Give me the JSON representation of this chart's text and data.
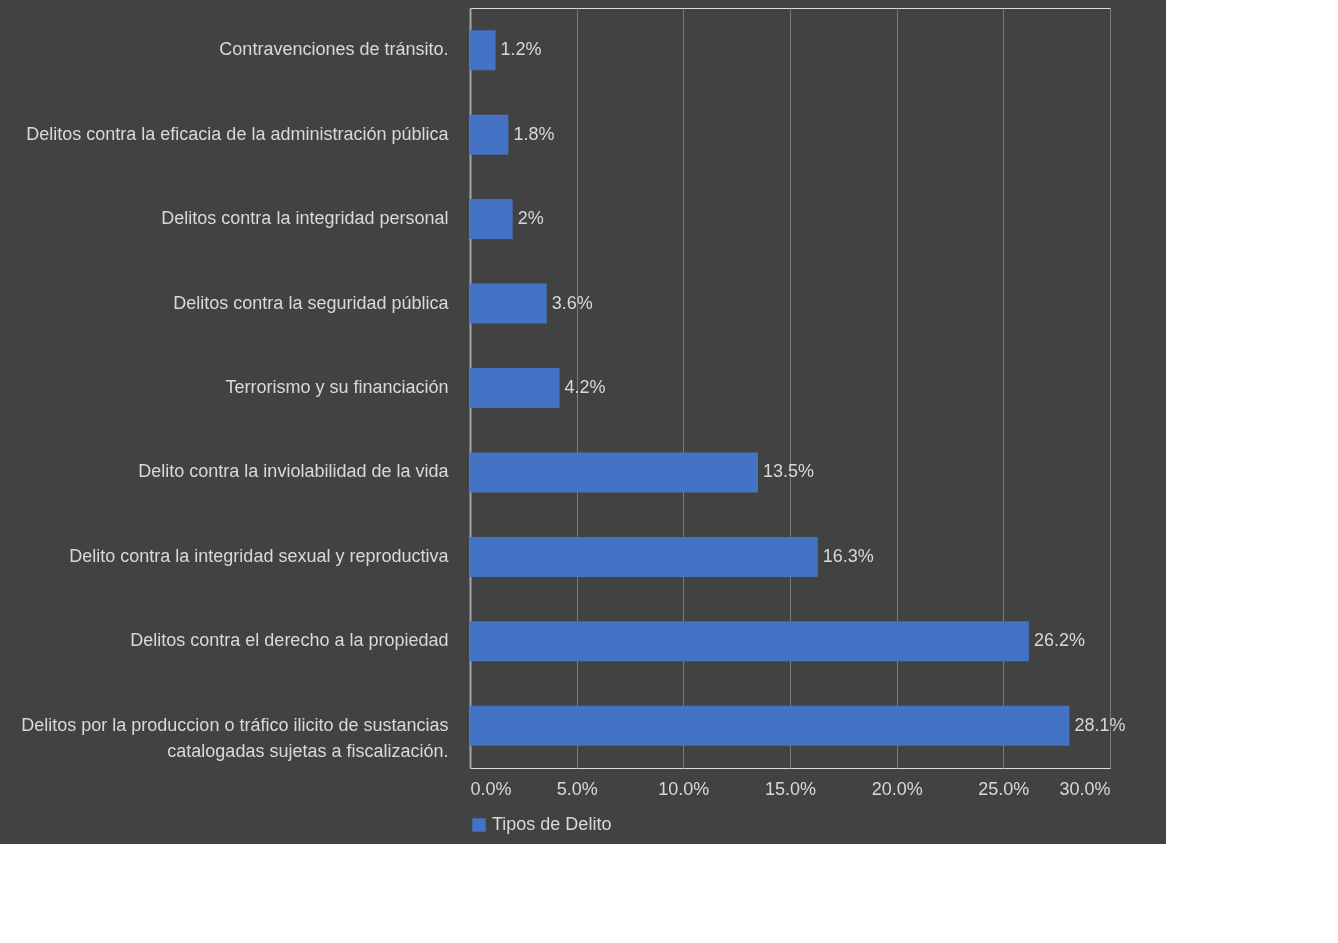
{
  "chart_data": {
    "type": "bar",
    "orientation": "horizontal",
    "categories": [
      "Contravenciones de tránsito.",
      "Delitos contra la eficacia de la administración pública",
      "Delitos contra la integridad personal",
      "Delitos contra la seguridad pública",
      "Terrorismo y su financiación",
      "Delito contra la inviolabilidad de la vida",
      "Delito contra la integridad sexual y reproductiva",
      "Delitos contra el derecho a la propiedad",
      "Delitos por la produccion o tráfico ilicito de sustancias catalogadas sujetas a fiscalización."
    ],
    "series": [
      {
        "name": "Tipos de Delito",
        "color": "#4472c4",
        "values": [
          1.2,
          1.8,
          2,
          3.6,
          4.2,
          13.5,
          16.3,
          26.2,
          28.1
        ],
        "value_labels": [
          "1.2%",
          "1.8%",
          "2%",
          "3.6%",
          "4.2%",
          "13.5%",
          "16.3%",
          "26.2%",
          "28.1%"
        ]
      }
    ],
    "xlim": [
      0,
      30
    ],
    "xticks": [
      {
        "value": 0,
        "label": "0.0%"
      },
      {
        "value": 5,
        "label": "5.0%"
      },
      {
        "value": 10,
        "label": "10.0%"
      },
      {
        "value": 15,
        "label": "15.0%"
      },
      {
        "value": 20,
        "label": "20.0%"
      },
      {
        "value": 25,
        "label": "25.0%"
      },
      {
        "value": 30,
        "label": "30.0%"
      }
    ],
    "grid": "x",
    "legend": "bottom"
  }
}
